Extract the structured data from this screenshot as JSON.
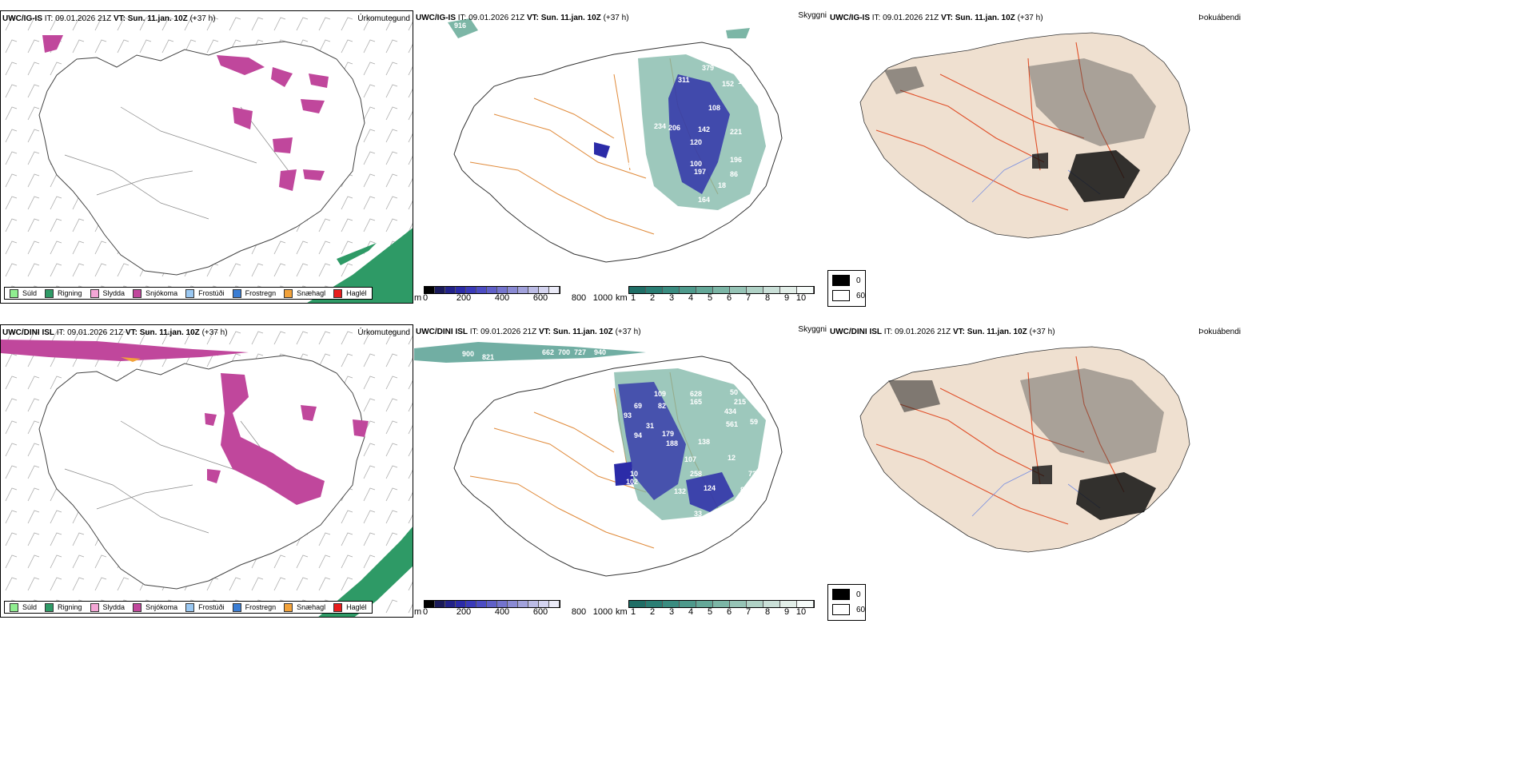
{
  "rows": [
    {
      "model": "UWC/IG-IS",
      "it_label": "IT:",
      "it_value": "09.01.2026 21Z",
      "vt_label": "VT:",
      "vt_value": "Sun. 11.jan. 10Z",
      "lead": "(+37 h)",
      "var_precip": "Úrkomutegund",
      "var_vis": "Skyggni",
      "var_fog": "Þokuábendi",
      "vis_labels": [
        "916",
        "311",
        "379",
        "366",
        "152",
        "142",
        "108",
        "234",
        "206",
        "142",
        "120",
        "221",
        "112",
        "100",
        "196",
        "197",
        "86",
        "18",
        "164",
        "74"
      ]
    },
    {
      "model": "UWC/DINI ISL",
      "it_label": "IT:",
      "it_value": "09.01.2026 21Z",
      "vt_label": "VT:",
      "vt_value": "Sun. 11.jan. 10Z",
      "lead": "(+37 h)",
      "var_precip": "Úrkomutegund",
      "var_vis": "Skyggni",
      "var_fog": "Þokuábendi",
      "vis_labels": [
        "900",
        "821",
        "662",
        "700",
        "727",
        "940",
        "109",
        "628",
        "50",
        "69",
        "82",
        "165",
        "215",
        "93",
        "434",
        "31",
        "561",
        "59",
        "94",
        "179",
        "188",
        "138",
        "107",
        "12",
        "258",
        "73",
        "10",
        "102",
        "132",
        "124",
        "88",
        "33"
      ]
    }
  ],
  "precip_legend": [
    {
      "label": "Súld",
      "color": "#90ee90"
    },
    {
      "label": "Rigning",
      "color": "#2e9a66"
    },
    {
      "label": "Slydda",
      "color": "#f4a6d6"
    },
    {
      "label": "Snjókoma",
      "color": "#c0479c"
    },
    {
      "label": "Frostúði",
      "color": "#9ac8f2"
    },
    {
      "label": "Frostregn",
      "color": "#3a7dd4"
    },
    {
      "label": "Snæhagl",
      "color": "#f2a23a"
    },
    {
      "label": "Haglél",
      "color": "#e81c1c"
    }
  ],
  "height_scale": {
    "unit": "m",
    "ticks": [
      "0",
      "200",
      "400",
      "600",
      "800",
      "1000"
    ],
    "colors": [
      "#000000",
      "#1a1a5a",
      "#22228a",
      "#2b2ba8",
      "#3a3aba",
      "#4d4dc4",
      "#6060c8",
      "#7474ce",
      "#8a8ad4",
      "#a2a2dc",
      "#bcbce6",
      "#d4d4f0",
      "#ebebf8"
    ]
  },
  "vis_scale": {
    "unit": "km",
    "ticks": [
      "1",
      "2",
      "3",
      "4",
      "5",
      "6",
      "7",
      "8",
      "9",
      "10"
    ],
    "colors": [
      "#1f6e66",
      "#2a7e74",
      "#3a8c80",
      "#4e9a8c",
      "#64a898",
      "#7cb6a6",
      "#96c4b6",
      "#b0d2c6",
      "#cae0d8",
      "#e2eee8",
      "#f6fbf9"
    ]
  },
  "fog_scale": {
    "ticks": [
      "0",
      "60"
    ],
    "colors": [
      "#000000",
      "#ffffff"
    ]
  }
}
